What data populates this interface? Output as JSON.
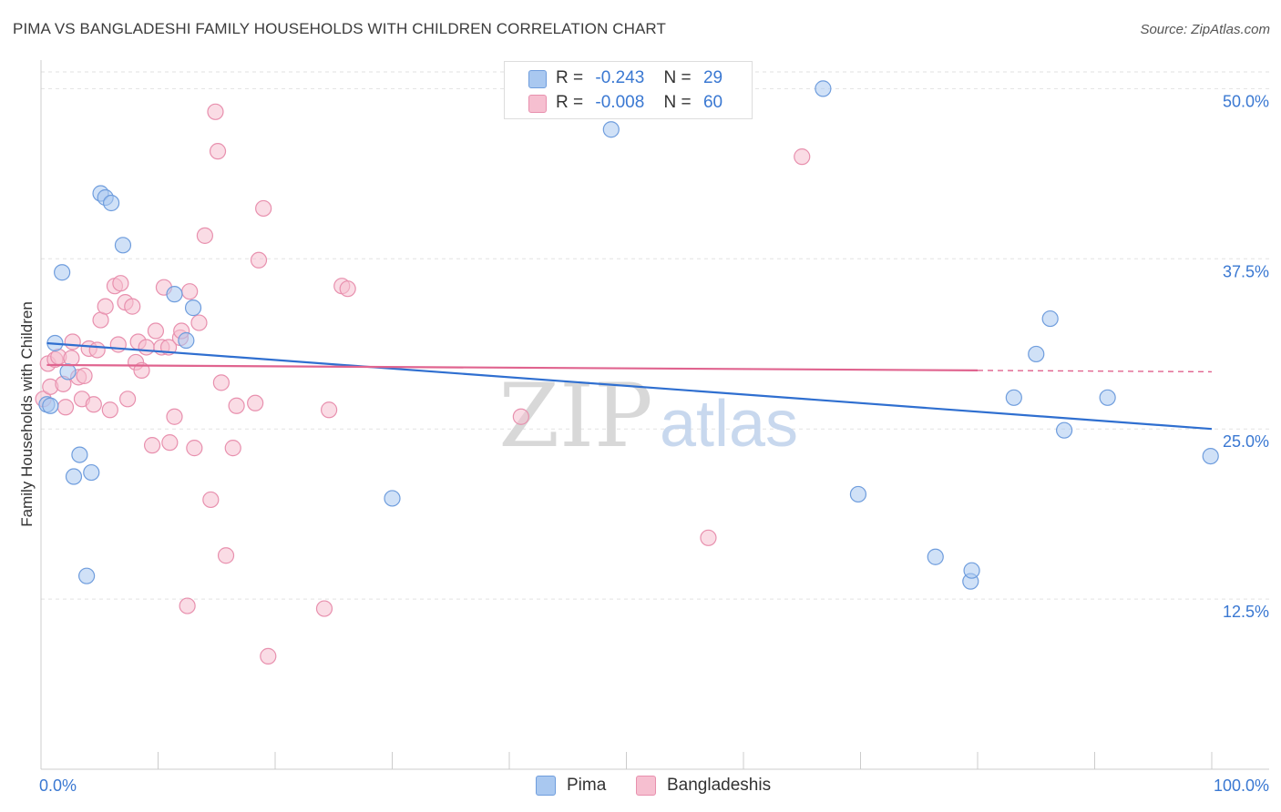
{
  "title": "PIMA VS BANGLADESHI FAMILY HOUSEHOLDS WITH CHILDREN CORRELATION CHART",
  "source": "Source: ZipAtlas.com",
  "watermark": {
    "zip": "ZIP",
    "atlas": "atlas"
  },
  "legend_top": {
    "rows": [
      {
        "r_label": "R =",
        "r_value": "-0.243",
        "n_label": "N =",
        "n_value": "29"
      },
      {
        "r_label": "R =",
        "r_value": "-0.008",
        "n_label": "N =",
        "n_value": "60"
      }
    ]
  },
  "legend_bottom": {
    "items": [
      "Pima",
      "Bangladeshis"
    ]
  },
  "colors": {
    "pima_fill": "#a9c8f0",
    "pima_stroke": "#6f9ddd",
    "pima_line": "#2f6fd0",
    "bang_fill": "#f6bfd0",
    "bang_stroke": "#e890ae",
    "bang_line": "#e0648f",
    "axis_text": "#3a78d2",
    "grid": "#e2e2e2"
  },
  "chart_data": {
    "type": "scatter",
    "title": "PIMA VS BANGLADESHI FAMILY HOUSEHOLDS WITH CHILDREN CORRELATION CHART",
    "xlabel": "",
    "ylabel": "Family Households with Children",
    "xlim": [
      0,
      100
    ],
    "ylim": [
      0,
      52.5
    ],
    "x_tick_labels": [
      "0.0%",
      "100.0%"
    ],
    "y_ticks": [
      12.5,
      25.0,
      37.5,
      50.0
    ],
    "y_tick_labels": [
      "12.5%",
      "25.0%",
      "37.5%",
      "50.0%"
    ],
    "grid": true,
    "series": [
      {
        "name": "Pima",
        "r": -0.243,
        "n": 29,
        "trend": {
          "x": [
            0.5,
            100
          ],
          "y": [
            31.3,
            25.0
          ]
        },
        "points": [
          {
            "x": 0.5,
            "y": 26.8
          },
          {
            "x": 0.8,
            "y": 26.7
          },
          {
            "x": 1.2,
            "y": 31.3
          },
          {
            "x": 1.8,
            "y": 36.5
          },
          {
            "x": 2.3,
            "y": 29.2
          },
          {
            "x": 2.8,
            "y": 21.5
          },
          {
            "x": 3.3,
            "y": 23.1
          },
          {
            "x": 3.9,
            "y": 14.2
          },
          {
            "x": 4.3,
            "y": 21.8
          },
          {
            "x": 5.1,
            "y": 42.3
          },
          {
            "x": 5.5,
            "y": 42.0
          },
          {
            "x": 6.0,
            "y": 41.6
          },
          {
            "x": 7.0,
            "y": 38.5
          },
          {
            "x": 11.4,
            "y": 34.9
          },
          {
            "x": 12.4,
            "y": 31.5
          },
          {
            "x": 13.0,
            "y": 33.9
          },
          {
            "x": 30.0,
            "y": 19.9
          },
          {
            "x": 48.7,
            "y": 47.0
          },
          {
            "x": 66.8,
            "y": 50.0
          },
          {
            "x": 69.8,
            "y": 20.2
          },
          {
            "x": 76.4,
            "y": 15.6
          },
          {
            "x": 79.4,
            "y": 13.8
          },
          {
            "x": 79.5,
            "y": 14.6
          },
          {
            "x": 83.1,
            "y": 27.3
          },
          {
            "x": 85.0,
            "y": 30.5
          },
          {
            "x": 86.2,
            "y": 33.1
          },
          {
            "x": 87.4,
            "y": 24.9
          },
          {
            "x": 91.1,
            "y": 27.3
          },
          {
            "x": 99.9,
            "y": 23.0
          }
        ]
      },
      {
        "name": "Bangladeshis",
        "r": -0.008,
        "n": 60,
        "trend": {
          "x": [
            0.5,
            80
          ],
          "y": [
            29.7,
            29.3
          ],
          "dashed_to": 100
        },
        "points": [
          {
            "x": 0.2,
            "y": 27.2
          },
          {
            "x": 0.6,
            "y": 29.8
          },
          {
            "x": 0.8,
            "y": 28.1
          },
          {
            "x": 1.2,
            "y": 30.1
          },
          {
            "x": 1.5,
            "y": 30.3
          },
          {
            "x": 1.9,
            "y": 28.3
          },
          {
            "x": 2.1,
            "y": 26.6
          },
          {
            "x": 2.6,
            "y": 30.2
          },
          {
            "x": 2.7,
            "y": 31.4
          },
          {
            "x": 3.2,
            "y": 28.8
          },
          {
            "x": 3.5,
            "y": 27.2
          },
          {
            "x": 3.7,
            "y": 28.9
          },
          {
            "x": 4.1,
            "y": 30.9
          },
          {
            "x": 4.5,
            "y": 26.8
          },
          {
            "x": 4.8,
            "y": 30.8
          },
          {
            "x": 5.1,
            "y": 33.0
          },
          {
            "x": 5.5,
            "y": 34.0
          },
          {
            "x": 5.9,
            "y": 26.4
          },
          {
            "x": 6.3,
            "y": 35.5
          },
          {
            "x": 6.6,
            "y": 31.2
          },
          {
            "x": 6.8,
            "y": 35.7
          },
          {
            "x": 7.2,
            "y": 34.3
          },
          {
            "x": 7.4,
            "y": 27.2
          },
          {
            "x": 7.8,
            "y": 34.0
          },
          {
            "x": 8.1,
            "y": 29.9
          },
          {
            "x": 8.3,
            "y": 31.4
          },
          {
            "x": 8.6,
            "y": 29.3
          },
          {
            "x": 9.0,
            "y": 31.0
          },
          {
            "x": 9.5,
            "y": 23.8
          },
          {
            "x": 9.8,
            "y": 32.2
          },
          {
            "x": 10.3,
            "y": 31.0
          },
          {
            "x": 10.5,
            "y": 35.4
          },
          {
            "x": 10.9,
            "y": 31.0
          },
          {
            "x": 11.0,
            "y": 24.0
          },
          {
            "x": 11.4,
            "y": 25.9
          },
          {
            "x": 11.9,
            "y": 31.7
          },
          {
            "x": 12.0,
            "y": 32.2
          },
          {
            "x": 12.5,
            "y": 12.0
          },
          {
            "x": 12.7,
            "y": 35.1
          },
          {
            "x": 13.1,
            "y": 23.6
          },
          {
            "x": 13.5,
            "y": 32.8
          },
          {
            "x": 14.0,
            "y": 39.2
          },
          {
            "x": 14.5,
            "y": 19.8
          },
          {
            "x": 14.9,
            "y": 48.3
          },
          {
            "x": 15.1,
            "y": 45.4
          },
          {
            "x": 15.4,
            "y": 28.4
          },
          {
            "x": 15.8,
            "y": 15.7
          },
          {
            "x": 16.4,
            "y": 23.6
          },
          {
            "x": 16.7,
            "y": 26.7
          },
          {
            "x": 18.3,
            "y": 26.9
          },
          {
            "x": 18.6,
            "y": 37.4
          },
          {
            "x": 19.0,
            "y": 41.2
          },
          {
            "x": 19.4,
            "y": 8.3
          },
          {
            "x": 24.2,
            "y": 11.8
          },
          {
            "x": 24.6,
            "y": 26.4
          },
          {
            "x": 25.7,
            "y": 35.5
          },
          {
            "x": 26.2,
            "y": 35.3
          },
          {
            "x": 41.0,
            "y": 25.9
          },
          {
            "x": 57.0,
            "y": 17.0
          },
          {
            "x": 65.0,
            "y": 45.0
          }
        ]
      }
    ]
  }
}
